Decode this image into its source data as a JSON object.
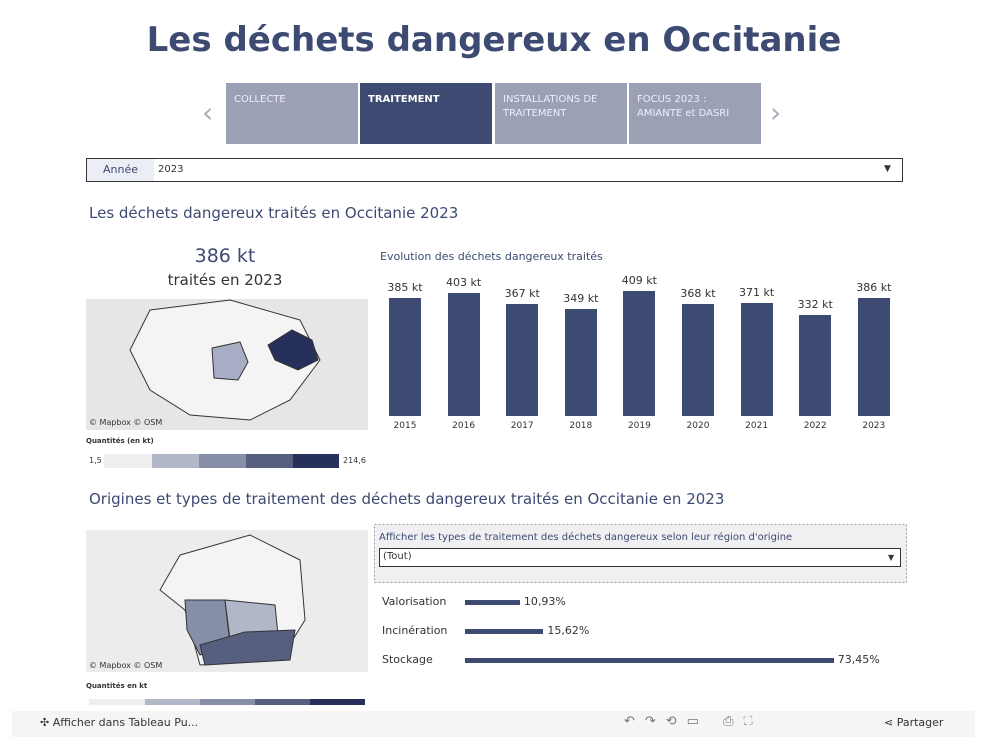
{
  "header": {
    "title": "Les déchets dangereux en Occitanie"
  },
  "tabs": [
    "COLLECTE",
    "TRAITEMENT",
    "INSTALLATIONS DE TRAITEMENT",
    "FOCUS 2023 : AMIANTE  et DASRI"
  ],
  "filter_year": {
    "label": "Année",
    "value": "2023"
  },
  "section1": {
    "title": "Les déchets dangereux traités en Occitanie 2023",
    "kpi_value": "386 kt",
    "kpi_caption": "traités en 2023",
    "map_attribution": "© Mapbox  © OSM",
    "legend_title": "Quantités (en kt)",
    "legend_min": "1,5",
    "legend_max": "214,6"
  },
  "section2": {
    "title": "Origines et types de traitement des déchets dangereux traités en Occitanie en 2023",
    "filter_label": "Afficher les types de traitement des déchets dangereux selon leur région d'origine",
    "filter_value": "(Tout)",
    "map_attribution": "© Mapbox  © OSM",
    "legend_title": "Quantités en kt"
  },
  "chart_data": [
    {
      "type": "bar",
      "title": "Evolution des déchets dangereux traités",
      "categories": [
        "2015",
        "2016",
        "2017",
        "2018",
        "2019",
        "2020",
        "2021",
        "2022",
        "2023"
      ],
      "values": [
        385,
        403,
        367,
        349,
        409,
        368,
        371,
        332,
        386
      ],
      "value_labels": [
        "385 kt",
        "403 kt",
        "367 kt",
        "349 kt",
        "409 kt",
        "368 kt",
        "371 kt",
        "332 kt",
        "386 kt"
      ],
      "color": "#3d4a72"
    },
    {
      "type": "hbar",
      "categories": [
        "Valorisation",
        "Incinération",
        "Stockage"
      ],
      "values": [
        10.93,
        15.62,
        73.45
      ],
      "value_labels": [
        "10,93%",
        "15,62%",
        "73,45%"
      ],
      "color": "#3d4a72"
    }
  ],
  "toolbar": {
    "view_in": "Afficher dans Tableau Pu...",
    "share": "Partager"
  }
}
